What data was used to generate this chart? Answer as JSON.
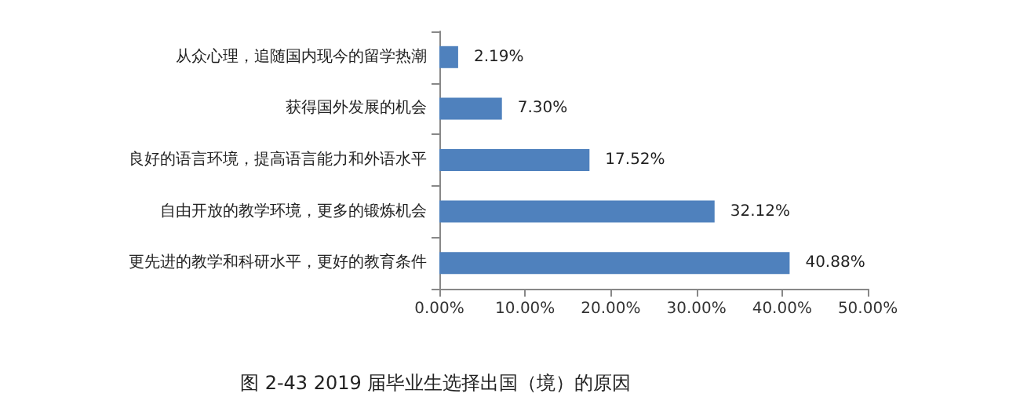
{
  "chart_data": {
    "type": "bar",
    "orientation": "horizontal",
    "title": "图 2-43 2019 届毕业生选择出国（境）的原因",
    "categories": [
      "从众心理，追随国内现今的留学热潮",
      "获得国外发展的机会",
      "良好的语言环境，提高语言能力和外语水平",
      "自由开放的教学环境，更多的锻炼机会",
      "更先进的教学和科研水平，更好的教育条件"
    ],
    "values": [
      2.19,
      7.3,
      17.52,
      32.12,
      40.88
    ],
    "value_labels": [
      "2.19%",
      "7.30%",
      "17.52%",
      "32.12%",
      "40.88%"
    ],
    "color": "#4f81bd",
    "xlim": [
      0,
      50
    ],
    "xticks": [
      {
        "value": 0,
        "label": "0.00%"
      },
      {
        "value": 10,
        "label": "10.00%"
      },
      {
        "value": 20,
        "label": "20.00%"
      },
      {
        "value": 30,
        "label": "30.00%"
      },
      {
        "value": 40,
        "label": "40.00%"
      },
      {
        "value": 50,
        "label": "50.00%"
      }
    ],
    "grid": false
  }
}
